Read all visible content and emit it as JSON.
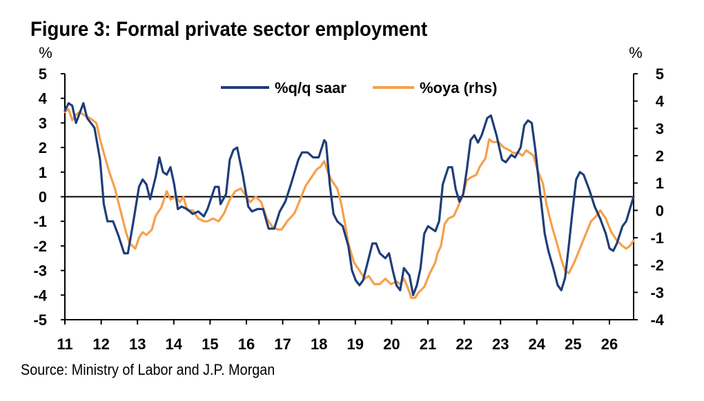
{
  "title": "Figure 3: Formal private sector employment",
  "source": "Source: Ministry of Labor and J.P. Morgan",
  "chart_data": {
    "type": "line",
    "title": "Figure 3: Formal private sector employment",
    "left_unit": "%",
    "right_unit": "%",
    "ylim_left": [
      -5,
      5
    ],
    "ylim_right": [
      -4,
      5
    ],
    "yticks_left": [
      "5",
      "4",
      "3",
      "2",
      "1",
      "0",
      "-1",
      "-2",
      "-3",
      "-4",
      "-5"
    ],
    "yticks_right": [
      "5",
      "4",
      "3",
      "2",
      "1",
      "0",
      "-1",
      "-2",
      "-3",
      "-4"
    ],
    "xlim": [
      2011.0,
      2026.35
    ],
    "xticks": [
      "11",
      "12",
      "13",
      "14",
      "15",
      "16",
      "17",
      "18",
      "19",
      "20",
      "21",
      "22",
      "23",
      "24",
      "25",
      "26"
    ],
    "grid": false,
    "legend_position": "top-center",
    "series": [
      {
        "name": "%q/q saar",
        "axis": "left",
        "color": "#1f3d7a",
        "points": [
          [
            2011.0,
            3.5
          ],
          [
            2011.1,
            3.8
          ],
          [
            2011.2,
            3.7
          ],
          [
            2011.3,
            3.0
          ],
          [
            2011.4,
            3.4
          ],
          [
            2011.5,
            3.8
          ],
          [
            2011.6,
            3.2
          ],
          [
            2011.8,
            2.8
          ],
          [
            2011.95,
            1.5
          ],
          [
            2012.05,
            -0.3
          ],
          [
            2012.15,
            -1.0
          ],
          [
            2012.3,
            -1.0
          ],
          [
            2012.45,
            -1.6
          ],
          [
            2012.6,
            -2.3
          ],
          [
            2012.7,
            -2.3
          ],
          [
            2012.85,
            -1.0
          ],
          [
            2013.0,
            0.4
          ],
          [
            2013.1,
            0.7
          ],
          [
            2013.2,
            0.5
          ],
          [
            2013.3,
            -0.1
          ],
          [
            2013.45,
            0.8
          ],
          [
            2013.55,
            1.6
          ],
          [
            2013.65,
            1.0
          ],
          [
            2013.75,
            0.9
          ],
          [
            2013.85,
            1.2
          ],
          [
            2013.95,
            0.5
          ],
          [
            2014.05,
            -0.5
          ],
          [
            2014.15,
            -0.4
          ],
          [
            2014.3,
            -0.5
          ],
          [
            2014.45,
            -0.7
          ],
          [
            2014.6,
            -0.6
          ],
          [
            2014.75,
            -0.8
          ],
          [
            2014.85,
            -0.5
          ],
          [
            2015.05,
            0.4
          ],
          [
            2015.15,
            0.4
          ],
          [
            2015.2,
            -0.3
          ],
          [
            2015.35,
            0.1
          ],
          [
            2015.45,
            1.5
          ],
          [
            2015.55,
            1.9
          ],
          [
            2015.65,
            2.0
          ],
          [
            2015.8,
            0.9
          ],
          [
            2015.95,
            -0.4
          ],
          [
            2016.05,
            -0.6
          ],
          [
            2016.2,
            -0.5
          ],
          [
            2016.35,
            -0.5
          ],
          [
            2016.5,
            -1.3
          ],
          [
            2016.65,
            -1.3
          ],
          [
            2016.8,
            -0.6
          ],
          [
            2016.95,
            -0.2
          ],
          [
            2017.1,
            0.5
          ],
          [
            2017.3,
            1.5
          ],
          [
            2017.4,
            1.8
          ],
          [
            2017.55,
            1.8
          ],
          [
            2017.7,
            1.6
          ],
          [
            2017.85,
            1.6
          ],
          [
            2018.0,
            2.3
          ],
          [
            2018.05,
            2.2
          ],
          [
            2018.15,
            0.5
          ],
          [
            2018.25,
            -0.7
          ],
          [
            2018.35,
            -1.0
          ],
          [
            2018.5,
            -1.2
          ],
          [
            2018.65,
            -2.0
          ],
          [
            2018.75,
            -3.0
          ],
          [
            2018.85,
            -3.4
          ],
          [
            2018.95,
            -3.6
          ],
          [
            2019.05,
            -3.4
          ],
          [
            2019.15,
            -2.8
          ],
          [
            2019.3,
            -1.9
          ],
          [
            2019.4,
            -1.9
          ],
          [
            2019.5,
            -2.3
          ],
          [
            2019.65,
            -2.5
          ],
          [
            2019.75,
            -2.3
          ],
          [
            2019.85,
            -3.0
          ],
          [
            2019.95,
            -3.6
          ],
          [
            2020.05,
            -3.8
          ],
          [
            2020.15,
            -2.9
          ],
          [
            2020.3,
            -3.2
          ],
          [
            2020.4,
            -4.0
          ],
          [
            2020.5,
            -3.6
          ],
          [
            2020.6,
            -2.9
          ],
          [
            2020.7,
            -1.5
          ],
          [
            2020.8,
            -1.2
          ],
          [
            2020.9,
            -1.3
          ],
          [
            2021.0,
            -1.4
          ],
          [
            2021.1,
            -1.0
          ],
          [
            2021.2,
            0.5
          ],
          [
            2021.35,
            1.2
          ],
          [
            2021.45,
            1.2
          ],
          [
            2021.55,
            0.3
          ],
          [
            2021.65,
            -0.2
          ],
          [
            2021.75,
            0.1
          ],
          [
            2021.85,
            1.1
          ],
          [
            2021.95,
            2.3
          ],
          [
            2022.05,
            2.5
          ],
          [
            2022.15,
            2.2
          ],
          [
            2022.25,
            2.5
          ],
          [
            2022.4,
            3.2
          ],
          [
            2022.5,
            3.3
          ],
          [
            2022.65,
            2.5
          ],
          [
            2022.8,
            1.5
          ],
          [
            2022.9,
            1.4
          ],
          [
            2023.05,
            1.7
          ],
          [
            2023.15,
            1.6
          ],
          [
            2023.3,
            2.0
          ],
          [
            2023.4,
            2.9
          ],
          [
            2023.5,
            3.1
          ],
          [
            2023.6,
            3.0
          ],
          [
            2023.7,
            1.9
          ],
          [
            2023.8,
            0.5
          ],
          [
            2023.95,
            -1.5
          ],
          [
            2024.05,
            -2.2
          ],
          [
            2024.2,
            -3.0
          ],
          [
            2024.3,
            -3.6
          ],
          [
            2024.4,
            -3.8
          ],
          [
            2024.5,
            -3.3
          ],
          [
            2024.6,
            -2.0
          ],
          [
            2024.7,
            -0.6
          ],
          [
            2024.8,
            0.7
          ],
          [
            2024.9,
            1.0
          ],
          [
            2025.0,
            0.9
          ],
          [
            2025.15,
            0.3
          ],
          [
            2025.3,
            -0.4
          ],
          [
            2025.45,
            -0.9
          ],
          [
            2025.6,
            -1.5
          ],
          [
            2025.7,
            -2.1
          ],
          [
            2025.8,
            -2.2
          ],
          [
            2025.9,
            -1.9
          ],
          [
            2026.05,
            -1.2
          ],
          [
            2026.15,
            -1.0
          ],
          [
            2026.25,
            -0.5
          ],
          [
            2026.35,
            0.0
          ]
        ]
      },
      {
        "name": "%oya (rhs)",
        "axis": "right",
        "color": "#f5a04b",
        "points": [
          [
            2011.0,
            3.6
          ],
          [
            2011.1,
            3.7
          ],
          [
            2011.2,
            3.3
          ],
          [
            2011.3,
            3.5
          ],
          [
            2011.4,
            3.6
          ],
          [
            2011.5,
            3.5
          ],
          [
            2011.65,
            3.4
          ],
          [
            2011.85,
            3.2
          ],
          [
            2011.95,
            2.6
          ],
          [
            2012.05,
            2.1
          ],
          [
            2012.2,
            1.4
          ],
          [
            2012.35,
            0.8
          ],
          [
            2012.5,
            0.0
          ],
          [
            2012.65,
            -0.8
          ],
          [
            2012.75,
            -1.2
          ],
          [
            2012.9,
            -1.4
          ],
          [
            2013.0,
            -1.0
          ],
          [
            2013.1,
            -0.8
          ],
          [
            2013.2,
            -0.9
          ],
          [
            2013.35,
            -0.7
          ],
          [
            2013.45,
            -0.2
          ],
          [
            2013.6,
            0.1
          ],
          [
            2013.75,
            0.7
          ],
          [
            2013.85,
            0.4
          ],
          [
            2014.0,
            0.5
          ],
          [
            2014.1,
            0.3
          ],
          [
            2014.2,
            0.5
          ],
          [
            2014.3,
            0.0
          ],
          [
            2014.45,
            0.0
          ],
          [
            2014.6,
            -0.3
          ],
          [
            2014.75,
            -0.4
          ],
          [
            2014.85,
            -0.4
          ],
          [
            2015.0,
            -0.3
          ],
          [
            2015.15,
            -0.4
          ],
          [
            2015.3,
            -0.1
          ],
          [
            2015.45,
            0.4
          ],
          [
            2015.6,
            0.7
          ],
          [
            2015.75,
            0.8
          ],
          [
            2015.85,
            0.6
          ],
          [
            2016.0,
            0.3
          ],
          [
            2016.15,
            0.5
          ],
          [
            2016.3,
            0.3
          ],
          [
            2016.45,
            -0.3
          ],
          [
            2016.6,
            -0.6
          ],
          [
            2016.75,
            -0.7
          ],
          [
            2016.85,
            -0.7
          ],
          [
            2017.0,
            -0.4
          ],
          [
            2017.2,
            -0.1
          ],
          [
            2017.35,
            0.4
          ],
          [
            2017.5,
            0.9
          ],
          [
            2017.65,
            1.2
          ],
          [
            2017.8,
            1.5
          ],
          [
            2017.9,
            1.6
          ],
          [
            2018.0,
            1.8
          ],
          [
            2018.1,
            1.4
          ],
          [
            2018.2,
            1.1
          ],
          [
            2018.35,
            0.8
          ],
          [
            2018.45,
            0.3
          ],
          [
            2018.55,
            -0.4
          ],
          [
            2018.65,
            -1.2
          ],
          [
            2018.8,
            -1.9
          ],
          [
            2018.95,
            -2.2
          ],
          [
            2019.1,
            -2.5
          ],
          [
            2019.2,
            -2.4
          ],
          [
            2019.35,
            -2.7
          ],
          [
            2019.5,
            -2.7
          ],
          [
            2019.65,
            -2.5
          ],
          [
            2019.8,
            -2.7
          ],
          [
            2019.95,
            -2.6
          ],
          [
            2020.05,
            -2.7
          ],
          [
            2020.15,
            -2.5
          ],
          [
            2020.25,
            -2.8
          ],
          [
            2020.35,
            -3.2
          ],
          [
            2020.45,
            -3.2
          ],
          [
            2020.55,
            -3.0
          ],
          [
            2020.7,
            -2.8
          ],
          [
            2020.85,
            -2.3
          ],
          [
            2021.0,
            -1.9
          ],
          [
            2021.05,
            -1.6
          ],
          [
            2021.15,
            -1.3
          ],
          [
            2021.25,
            -0.5
          ],
          [
            2021.35,
            -0.3
          ],
          [
            2021.5,
            -0.2
          ],
          [
            2021.6,
            0.1
          ],
          [
            2021.75,
            0.6
          ],
          [
            2021.85,
            1.1
          ],
          [
            2021.95,
            1.2
          ],
          [
            2022.1,
            1.3
          ],
          [
            2022.2,
            1.6
          ],
          [
            2022.35,
            1.9
          ],
          [
            2022.45,
            2.6
          ],
          [
            2022.55,
            2.5
          ],
          [
            2022.7,
            2.5
          ],
          [
            2022.85,
            2.3
          ],
          [
            2023.0,
            2.2
          ],
          [
            2023.1,
            2.1
          ],
          [
            2023.25,
            2.1
          ],
          [
            2023.35,
            2.0
          ],
          [
            2023.45,
            2.2
          ],
          [
            2023.55,
            2.1
          ],
          [
            2023.65,
            2.0
          ],
          [
            2023.75,
            1.5
          ],
          [
            2023.9,
            1.0
          ],
          [
            2024.0,
            0.2
          ],
          [
            2024.15,
            -0.6
          ],
          [
            2024.3,
            -1.3
          ],
          [
            2024.4,
            -1.8
          ],
          [
            2024.5,
            -2.2
          ],
          [
            2024.6,
            -2.3
          ],
          [
            2024.75,
            -1.9
          ],
          [
            2024.9,
            -1.4
          ],
          [
            2025.05,
            -0.9
          ],
          [
            2025.2,
            -0.4
          ],
          [
            2025.35,
            -0.2
          ],
          [
            2025.45,
            0.0
          ],
          [
            2025.6,
            -0.3
          ],
          [
            2025.75,
            -0.8
          ],
          [
            2025.9,
            -1.1
          ],
          [
            2026.05,
            -1.3
          ],
          [
            2026.15,
            -1.4
          ],
          [
            2026.25,
            -1.3
          ],
          [
            2026.35,
            -1.1
          ]
        ]
      }
    ]
  }
}
